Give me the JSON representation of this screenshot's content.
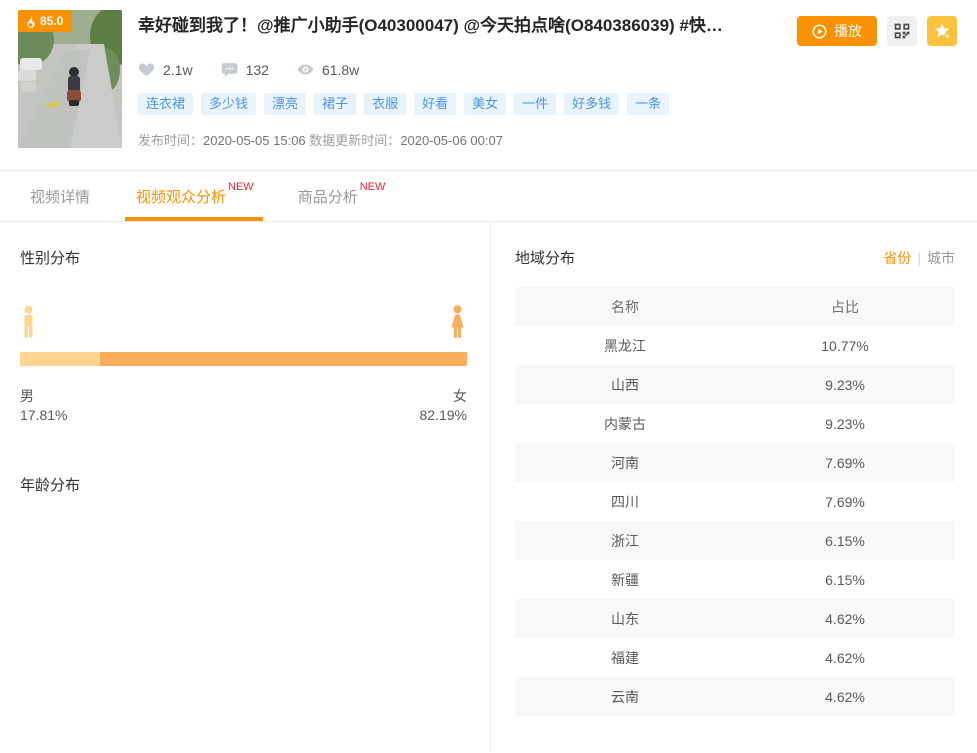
{
  "header": {
    "hot_score": "85.0",
    "title": "幸好碰到我了！@推广小助手(O40300047) @今天拍点啥(O840386039) #快…",
    "stats": {
      "likes": "2.1w",
      "comments": "132",
      "views": "61.8w"
    },
    "tags": [
      "连衣裙",
      "多少钱",
      "漂亮",
      "裙子",
      "衣服",
      "好看",
      "美女",
      "一件",
      "好多钱",
      "一条"
    ],
    "publish_label": "发布时间：",
    "publish_value": "2020-05-05 15:06",
    "update_label": "数据更新时间：",
    "update_value": "2020-05-06 00:07",
    "actions": {
      "play_label": "播放"
    }
  },
  "tabs": {
    "items": [
      {
        "label": "视频详情",
        "badge": "",
        "active": false
      },
      {
        "label": "视频观众分析",
        "badge": "NEW",
        "active": true
      },
      {
        "label": "商品分析",
        "badge": "NEW",
        "active": false
      }
    ]
  },
  "panels": {
    "gender": {
      "title": "性别分布",
      "male_label": "男",
      "male_value": "17.81%",
      "male_pct": 17.81,
      "female_label": "女",
      "female_value": "82.19%",
      "female_pct": 82.19
    },
    "age": {
      "title": "年龄分布"
    },
    "region": {
      "title": "地域分布",
      "toggle": {
        "province": "省份",
        "separator": "|",
        "city": "城市"
      },
      "columns": [
        "名称",
        "占比"
      ],
      "rows": [
        {
          "name": "黑龙江",
          "value": "10.77%"
        },
        {
          "name": "山西",
          "value": "9.23%"
        },
        {
          "name": "内蒙古",
          "value": "9.23%"
        },
        {
          "name": "河南",
          "value": "7.69%"
        },
        {
          "name": "四川",
          "value": "7.69%"
        },
        {
          "name": "浙江",
          "value": "6.15%"
        },
        {
          "name": "新疆",
          "value": "6.15%"
        },
        {
          "name": "山东",
          "value": "4.62%"
        },
        {
          "name": "福建",
          "value": "4.62%"
        },
        {
          "name": "云南",
          "value": "4.62%"
        }
      ]
    }
  },
  "chart_data": [
    {
      "type": "bar",
      "title": "性别分布",
      "categories": [
        "男",
        "女"
      ],
      "values": [
        17.81,
        82.19
      ],
      "unit": "%",
      "colors": [
        "#ffd591",
        "#faad5a"
      ]
    },
    {
      "type": "table",
      "title": "地域分布",
      "columns": [
        "名称",
        "占比"
      ],
      "rows": [
        [
          "黑龙江",
          "10.77%"
        ],
        [
          "山西",
          "9.23%"
        ],
        [
          "内蒙古",
          "9.23%"
        ],
        [
          "河南",
          "7.69%"
        ],
        [
          "四川",
          "7.69%"
        ],
        [
          "浙江",
          "6.15%"
        ],
        [
          "新疆",
          "6.15%"
        ],
        [
          "山东",
          "4.62%"
        ],
        [
          "福建",
          "4.62%"
        ],
        [
          "云南",
          "4.62%"
        ]
      ]
    }
  ],
  "colors": {
    "accent": "#fa9100",
    "male_bar": "#ffd591",
    "female_bar": "#faad5a",
    "tag_text": "#4c95e0",
    "tag_bg": "#e8f3fc",
    "new_badge": "#f5222d",
    "fav_button": "#fac23d"
  }
}
